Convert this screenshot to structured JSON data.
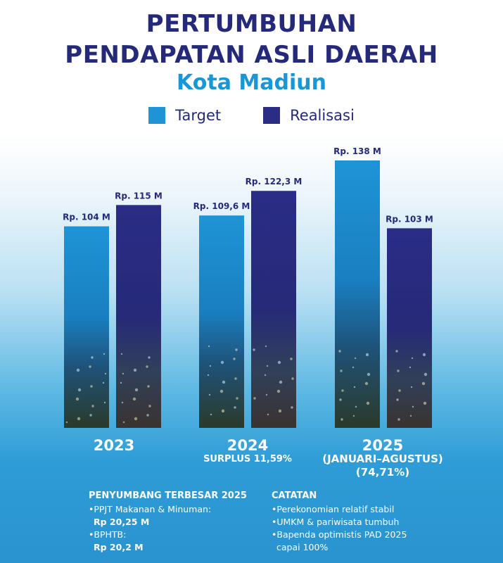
{
  "title_line1": "PERTUMBUHAN",
  "title_line2": "PENDAPATAN ASLI DAERAH",
  "subtitle": "Kota Madiun",
  "colors": {
    "target": "#1e94d6",
    "realisasi": "#2a2c86",
    "title": "#25297a",
    "subtitle": "#1797d8"
  },
  "chart_data": {
    "type": "bar",
    "categories": [
      "2023",
      "2024",
      "2025"
    ],
    "series": [
      {
        "name": "Target",
        "values": [
          104,
          109.6,
          138
        ],
        "labels": [
          "Rp. 104 M",
          "Rp. 109,6 M",
          "Rp. 138 M"
        ]
      },
      {
        "name": "Realisasi",
        "values": [
          115,
          122.3,
          103
        ],
        "labels": [
          "Rp. 115 M",
          "Rp. 122,3 M",
          "Rp. 103 M"
        ]
      }
    ],
    "unit": "M",
    "legend": "top-center",
    "grid": false
  },
  "year_notes": {
    "y2024": "SURPLUS 11,59%",
    "y2025_line1": "(JANUARI–AGUSTUS)",
    "y2025_line2": "(74,71%)"
  },
  "contributors": {
    "heading": "PENYUMBANG TERBESAR 2025",
    "items": [
      {
        "label": "•PPJT Makanan & Minuman:",
        "value": "Rp 20,25 M"
      },
      {
        "label": "•BPHTB:",
        "value": "Rp 20,2 M"
      }
    ]
  },
  "catatan": {
    "heading": "CATATAN",
    "items": [
      "•Perekonomian relatif stabil",
      "•UMKM & pariwisata tumbuh",
      "•Bapenda optimistis PAD 2025",
      "capai 100%"
    ]
  }
}
